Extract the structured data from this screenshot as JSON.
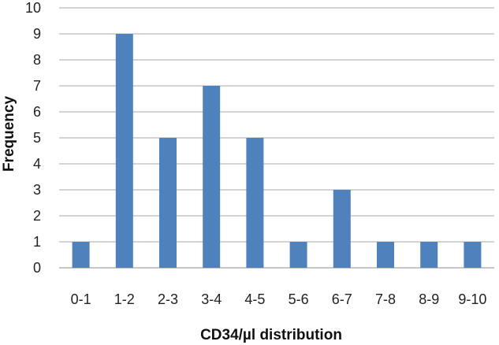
{
  "chart_data": {
    "type": "bar",
    "title": "",
    "xlabel": "CD34/µl distribution",
    "ylabel": "Frequency",
    "categories": [
      "0-1",
      "1-2",
      "2-3",
      "3-4",
      "4-5",
      "5-6",
      "6-7",
      "7-8",
      "8-9",
      "9-10"
    ],
    "values": [
      1,
      9,
      5,
      7,
      5,
      1,
      3,
      1,
      1,
      1
    ],
    "ylim": [
      0,
      10
    ],
    "yticks": [
      0,
      1,
      2,
      3,
      4,
      5,
      6,
      7,
      8,
      9,
      10
    ],
    "grid": true,
    "legend": "none",
    "colors": {
      "bar": "#4f81bd",
      "grid": "#a9a9a9"
    }
  }
}
